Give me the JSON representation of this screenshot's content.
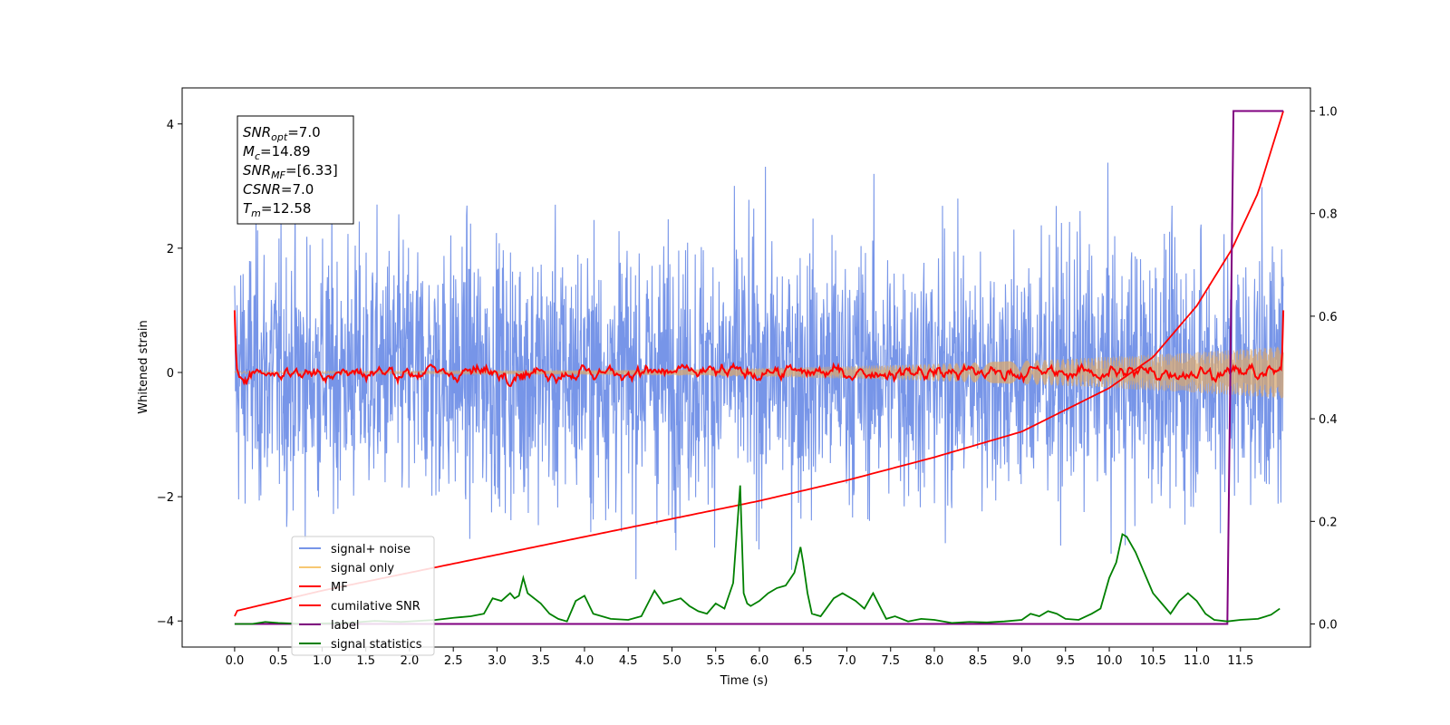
{
  "chart_data": {
    "type": "line",
    "xlabel": "Time (s)",
    "ylabel": "Whitened strain",
    "xlim": [
      -0.6,
      12.3
    ],
    "ylim": [
      -4.42,
      4.58
    ],
    "y2lim": [
      -0.045,
      1.045
    ],
    "x_ticks": [
      0.0,
      0.5,
      1.0,
      1.5,
      2.0,
      2.5,
      3.0,
      3.5,
      4.0,
      4.5,
      5.0,
      5.5,
      6.0,
      6.5,
      7.0,
      7.5,
      8.0,
      8.5,
      9.0,
      9.5,
      10.0,
      10.5,
      11.0,
      11.5
    ],
    "x_tick_labels": [
      "0.0",
      "0.5",
      "1.0",
      "1.5",
      "2.0",
      "2.5",
      "3.0",
      "3.5",
      "4.0",
      "4.5",
      "5.0",
      "5.5",
      "6.0",
      "6.5",
      "7.0",
      "7.5",
      "8.0",
      "8.5",
      "9.0",
      "9.5",
      "10.0",
      "10.5",
      "11.0",
      "11.5"
    ],
    "y_ticks": [
      -4,
      -2,
      0,
      2,
      4
    ],
    "y_tick_labels": [
      "−4",
      "−2",
      "0",
      "2",
      "4"
    ],
    "y2_ticks": [
      0.0,
      0.2,
      0.4,
      0.6,
      0.8,
      1.0
    ],
    "y2_tick_labels": [
      "0.0",
      "0.2",
      "0.4",
      "0.6",
      "0.8",
      "1.0"
    ],
    "grid": false,
    "legend_position": "lower-left",
    "annotation": {
      "lines": [
        {
          "main": "SNR",
          "sub": "opt",
          "value": "=7.0"
        },
        {
          "main": "M",
          "sub": "c",
          "value": "=14.89"
        },
        {
          "main": "SNR",
          "sub": "MF",
          "value": "=[6.33]"
        },
        {
          "main": "CSNR",
          "sub": "",
          "value": "=7.0"
        },
        {
          "main": "T",
          "sub": "m",
          "value": "=12.58"
        }
      ]
    },
    "series": [
      {
        "name": "signal+ noise",
        "color": "#7795e8",
        "axis": "left",
        "description_values": {
          "t_start": 0.0,
          "t_end": 11.99,
          "std": 1.0,
          "max": 4.15,
          "min": -3.95
        }
      },
      {
        "name": "signal only",
        "color": "#f7c873",
        "axis": "left",
        "description_values": {
          "t_start": 0.0,
          "t_end": 11.99,
          "amp_start": 0.02,
          "amp_end": 0.42
        }
      },
      {
        "name": "MF",
        "color": "#ff0000",
        "axis": "left",
        "description_values": {
          "t_start": 0.0,
          "t_end": 11.99,
          "start_value": 1.0,
          "end_value": 1.0
        }
      },
      {
        "name": "cumilative SNR",
        "color": "#ff0000",
        "axis": "right",
        "x": [
          0.0,
          0.01,
          1.0,
          2.0,
          3.0,
          4.0,
          5.0,
          6.0,
          7.0,
          8.0,
          9.0,
          10.0,
          10.5,
          11.0,
          11.4,
          11.7,
          11.99
        ],
        "y": [
          0.015,
          0.025,
          0.065,
          0.1,
          0.135,
          0.17,
          0.205,
          0.24,
          0.28,
          0.325,
          0.375,
          0.46,
          0.52,
          0.62,
          0.73,
          0.84,
          1.0
        ]
      },
      {
        "name": "label",
        "color": "#800080",
        "axis": "right",
        "x": [
          0.0,
          11.35,
          11.42,
          11.99
        ],
        "y": [
          0.0,
          0.0,
          1.0,
          1.0
        ]
      },
      {
        "name": "signal statistics",
        "color": "#008000",
        "axis": "right",
        "x": [
          0.0,
          0.2,
          0.35,
          0.5,
          0.8,
          1.0,
          1.3,
          1.6,
          1.9,
          2.1,
          2.3,
          2.5,
          2.7,
          2.85,
          2.95,
          3.05,
          3.15,
          3.2,
          3.25,
          3.3,
          3.35,
          3.5,
          3.6,
          3.7,
          3.8,
          3.9,
          4.0,
          4.1,
          4.3,
          4.5,
          4.65,
          4.8,
          4.9,
          5.0,
          5.1,
          5.2,
          5.3,
          5.4,
          5.5,
          5.6,
          5.7,
          5.78,
          5.82,
          5.86,
          5.9,
          6.0,
          6.1,
          6.2,
          6.3,
          6.4,
          6.47,
          6.5,
          6.55,
          6.6,
          6.7,
          6.85,
          6.95,
          7.1,
          7.2,
          7.3,
          7.45,
          7.55,
          7.7,
          7.85,
          8.0,
          8.2,
          8.4,
          8.6,
          8.8,
          9.0,
          9.1,
          9.2,
          9.3,
          9.4,
          9.5,
          9.65,
          9.8,
          9.9,
          10.0,
          10.08,
          10.15,
          10.2,
          10.3,
          10.4,
          10.5,
          10.6,
          10.7,
          10.8,
          10.9,
          11.0,
          11.1,
          11.2,
          11.35,
          11.5,
          11.7,
          11.85,
          11.95
        ],
        "y": [
          0.0,
          0.0,
          0.004,
          0.002,
          0.0,
          0.001,
          0.002,
          0.006,
          0.004,
          0.006,
          0.008,
          0.012,
          0.015,
          0.02,
          0.05,
          0.045,
          0.06,
          0.05,
          0.055,
          0.09,
          0.06,
          0.04,
          0.02,
          0.01,
          0.005,
          0.045,
          0.055,
          0.02,
          0.01,
          0.008,
          0.015,
          0.065,
          0.04,
          0.045,
          0.05,
          0.035,
          0.025,
          0.02,
          0.04,
          0.03,
          0.08,
          0.27,
          0.06,
          0.04,
          0.035,
          0.045,
          0.06,
          0.07,
          0.075,
          0.1,
          0.15,
          0.12,
          0.06,
          0.02,
          0.015,
          0.05,
          0.06,
          0.045,
          0.03,
          0.06,
          0.01,
          0.015,
          0.005,
          0.01,
          0.008,
          0.002,
          0.004,
          0.003,
          0.005,
          0.008,
          0.02,
          0.015,
          0.025,
          0.02,
          0.01,
          0.008,
          0.02,
          0.03,
          0.09,
          0.12,
          0.175,
          0.17,
          0.14,
          0.1,
          0.06,
          0.04,
          0.02,
          0.045,
          0.06,
          0.045,
          0.02,
          0.008,
          0.005,
          0.008,
          0.01,
          0.018,
          0.03
        ]
      }
    ]
  }
}
